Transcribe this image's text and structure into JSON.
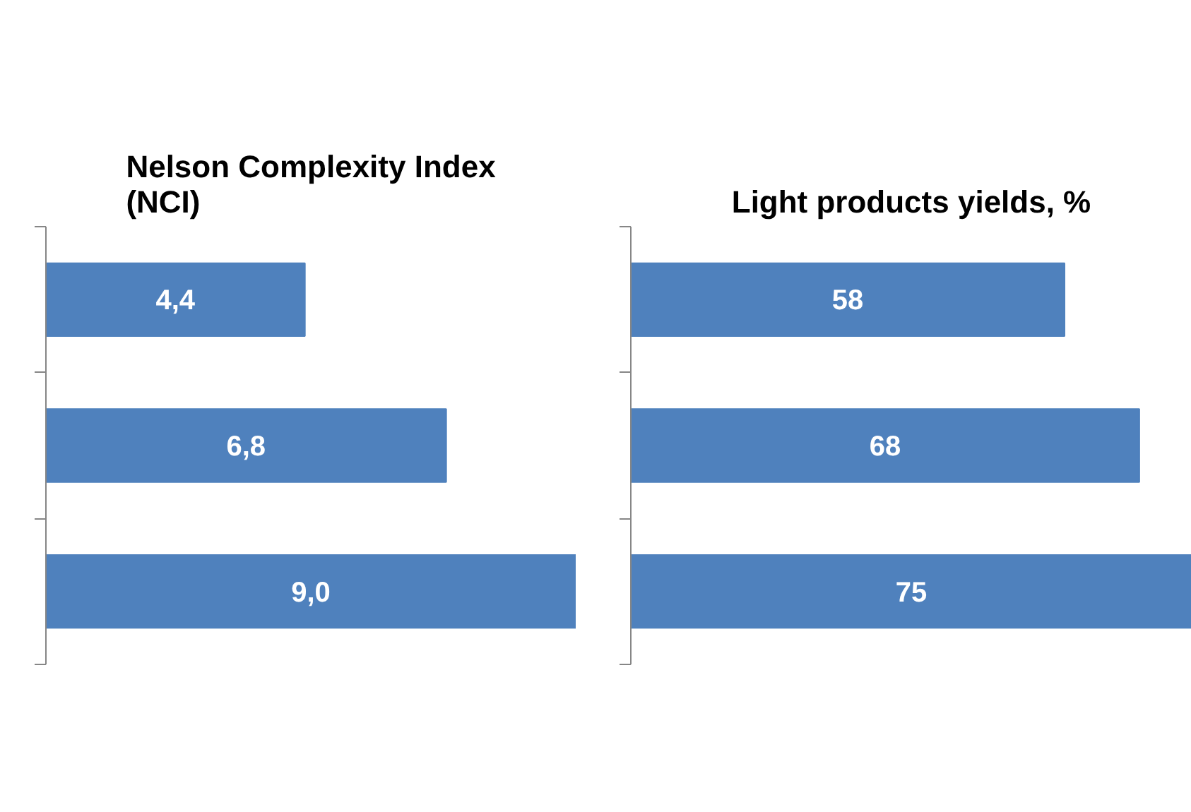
{
  "chart_data": [
    {
      "type": "bar",
      "orientation": "horizontal",
      "title": "Nelson Complexity Index\n(NCI)",
      "categories": [
        null,
        null,
        null
      ],
      "values": [
        4.4,
        6.8,
        9.0
      ],
      "value_labels": [
        "4,4",
        "6,8",
        "9,0"
      ],
      "color": "#4f81bd",
      "tick_labels": false
    },
    {
      "type": "bar",
      "orientation": "horizontal",
      "title": "Light products yields, %",
      "categories": [
        null,
        null,
        null
      ],
      "values": [
        58,
        68,
        75
      ],
      "value_labels": [
        "58",
        "68",
        "75"
      ],
      "color": "#4f81bd",
      "tick_labels": false
    }
  ]
}
